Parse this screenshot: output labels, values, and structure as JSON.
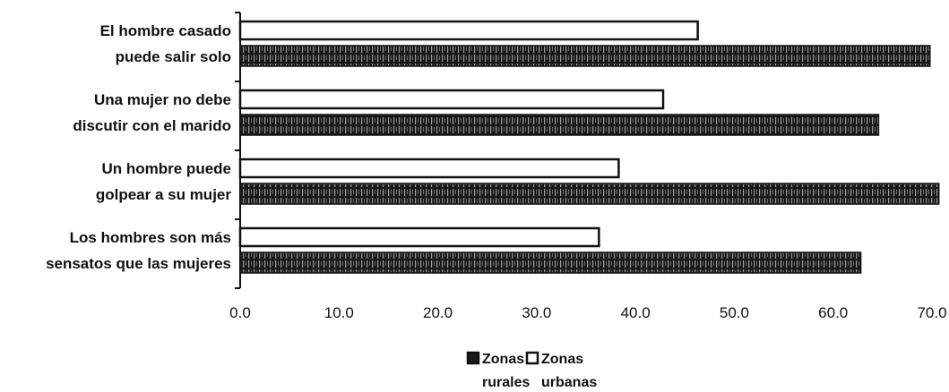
{
  "chart_data": {
    "type": "bar",
    "orientation": "horizontal",
    "categories": [
      [
        "El hombre casado",
        "puede salir solo"
      ],
      [
        "Una mujer no debe",
        "discutir con el marido"
      ],
      [
        "Un hombre puede",
        "golpear a su mujer"
      ],
      [
        "Los hombres son más",
        "sensatos que las mujeres"
      ]
    ],
    "series": [
      {
        "name": [
          "Zonas",
          "urbanas"
        ],
        "values": [
          46.3,
          42.8,
          38.3,
          36.3
        ],
        "color": "#ffffff"
      },
      {
        "name": [
          "Zonas",
          "rurales"
        ],
        "values": [
          69.8,
          64.6,
          70.7,
          62.8
        ],
        "color": "#1a1a1a"
      }
    ],
    "xlim": [
      0,
      70
    ],
    "xticks": [
      "0.0",
      "10.0",
      "20.0",
      "30.0",
      "40.0",
      "50.0",
      "60.0",
      "70.0"
    ],
    "grid": false,
    "legend_position": "bottom"
  }
}
